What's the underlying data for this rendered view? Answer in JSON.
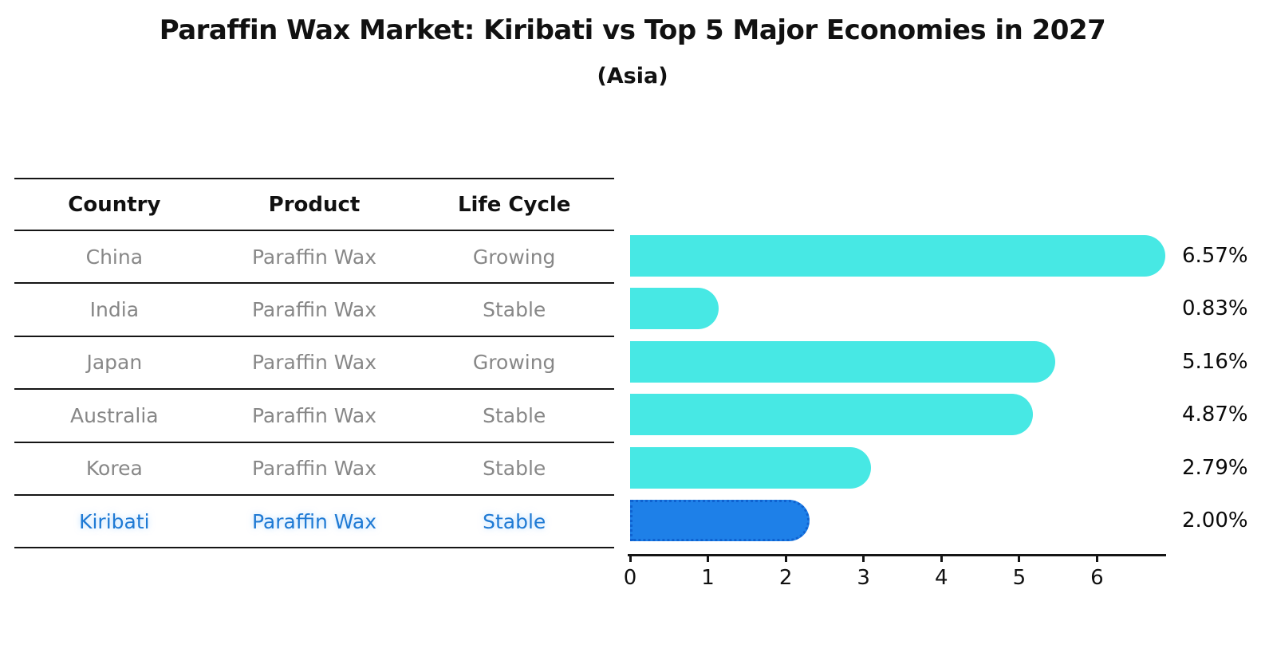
{
  "title": "Paraffin Wax Market: Kiribati vs Top 5 Major Economies in 2027",
  "subtitle": "(Asia)",
  "table": {
    "headers": [
      "Country",
      "Product",
      "Life Cycle"
    ],
    "rows": [
      {
        "country": "China",
        "product": "Paraffin Wax",
        "life_cycle": "Growing",
        "highlight": false
      },
      {
        "country": "India",
        "product": "Paraffin Wax",
        "life_cycle": "Stable",
        "highlight": false
      },
      {
        "country": "Japan",
        "product": "Paraffin Wax",
        "life_cycle": "Growing",
        "highlight": false
      },
      {
        "country": "Australia",
        "product": "Paraffin Wax",
        "life_cycle": "Stable",
        "highlight": false
      },
      {
        "country": "Korea",
        "product": "Paraffin Wax",
        "life_cycle": "Stable",
        "highlight": false
      },
      {
        "country": "Kiribati",
        "product": "Paraffin Wax",
        "life_cycle": "Stable",
        "highlight": true
      }
    ]
  },
  "chart_data": {
    "type": "bar",
    "orientation": "horizontal",
    "title": "Paraffin Wax Market: Kiribati vs Top 5 Major Economies in 2027",
    "subtitle": "(Asia)",
    "categories": [
      "China",
      "India",
      "Japan",
      "Australia",
      "Korea",
      "Kiribati"
    ],
    "values": [
      6.57,
      0.83,
      5.16,
      4.87,
      2.79,
      2.0
    ],
    "value_labels": [
      "6.57%",
      "0.83%",
      "5.16%",
      "4.87%",
      "2.79%",
      "2.00%"
    ],
    "highlight_index": 5,
    "x_ticks": [
      0,
      1,
      2,
      3,
      4,
      5,
      6
    ],
    "xlim": [
      0,
      6.9
    ],
    "xlabel": "",
    "ylabel": "",
    "grid": false,
    "legend": false
  },
  "colors": {
    "bar": "#47E8E4",
    "highlight_bar": "#1E80E8",
    "highlight_border": "#0F62D0",
    "highlight_text": "#1F7AD4",
    "body_text": "#878787",
    "heading_text": "#111111",
    "axis": "#151515"
  }
}
